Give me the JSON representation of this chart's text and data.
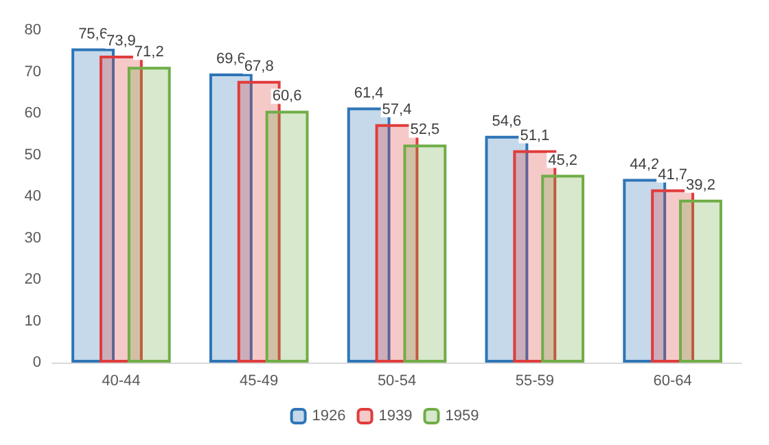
{
  "chart_data": {
    "type": "bar",
    "categories": [
      "40-44",
      "45-49",
      "50-54",
      "55-59",
      "60-64"
    ],
    "series": [
      {
        "name": "1926",
        "color": "#2e75b6",
        "values": [
          75.6,
          69.6,
          61.4,
          54.6,
          44.2
        ],
        "value_labels": [
          "75,6",
          "69,6",
          "61,4",
          "54,6",
          "44,2"
        ]
      },
      {
        "name": "1939",
        "color": "#e03c3c",
        "values": [
          73.9,
          67.8,
          57.4,
          51.1,
          41.7
        ],
        "value_labels": [
          "73,9",
          "67,8",
          "57,4",
          "51,1",
          "41,7"
        ]
      },
      {
        "name": "1959",
        "color": "#70ad47",
        "values": [
          71.2,
          60.6,
          52.5,
          45.2,
          39.2
        ],
        "value_labels": [
          "71,2",
          "60,6",
          "52,5",
          "45,2",
          "39,2"
        ]
      }
    ],
    "ylim": [
      0,
      80
    ],
    "yticks": [
      0,
      10,
      20,
      30,
      40,
      50,
      60,
      70,
      80
    ],
    "grid": false,
    "legend": "bottom"
  }
}
